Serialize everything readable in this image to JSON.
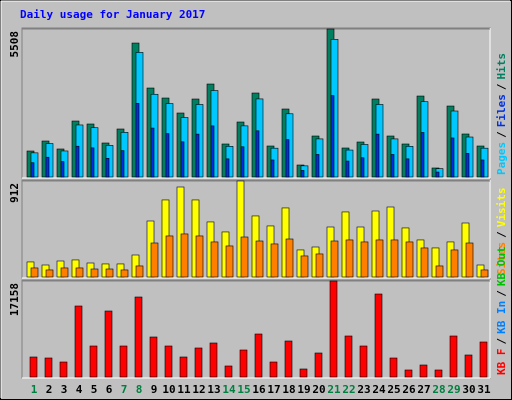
{
  "chart_data": [
    {
      "type": "bar",
      "title": "Daily usage for January 2017",
      "categories": [
        "1",
        "2",
        "3",
        "4",
        "5",
        "6",
        "7",
        "8",
        "9",
        "10",
        "11",
        "12",
        "13",
        "14",
        "15",
        "16",
        "17",
        "18",
        "19",
        "20",
        "21",
        "22",
        "23",
        "24",
        "25",
        "26",
        "27",
        "28",
        "29",
        "30",
        "31"
      ],
      "category_colors": [
        "#008040",
        "#000000",
        "#000000",
        "#000000",
        "#000000",
        "#000000",
        "#008040",
        "#008040",
        "#000000",
        "#000000",
        "#000000",
        "#000000",
        "#000000",
        "#008040",
        "#008040",
        "#000000",
        "#000000",
        "#000000",
        "#000000",
        "#000000",
        "#008040",
        "#008040",
        "#000000",
        "#000000",
        "#000000",
        "#000000",
        "#000000",
        "#008040",
        "#008040",
        "#000000",
        "#000000"
      ],
      "ylim": [
        0,
        5508
      ],
      "yticks": [
        5508
      ],
      "separator": "/",
      "series": [
        {
          "name": "Pages",
          "color": "#00c8ff",
          "values": [
            899,
            1245,
            969,
            1937,
            1834,
            1176,
            1661,
            4636,
            3079,
            2733,
            2214,
            2699,
            3218,
            1142,
            1903,
            2906,
            1072,
            2353,
            415,
            1418,
            5122,
            1003,
            1211,
            2699,
            1418,
            1142,
            2802,
            312,
            2456,
            1488,
            1072
          ]
        },
        {
          "name": "Files",
          "color": "#0030e0",
          "values": [
            532,
            736,
            573,
            1146,
            1085,
            696,
            982,
            2742,
            1821,
            1616,
            1310,
            1596,
            1903,
            675,
            1125,
            1719,
            634,
            1392,
            245,
            839,
            3029,
            593,
            716,
            1596,
            839,
            675,
            1657,
            184,
            1453,
            880,
            634
          ]
        },
        {
          "name": "Hits",
          "color": "#008060",
          "values": [
            967,
            1339,
            1042,
            2083,
            1972,
            1265,
            1786,
            4985,
            3311,
            2939,
            2381,
            2902,
            3460,
            1228,
            2046,
            3125,
            1153,
            2530,
            446,
            1525,
            5508,
            1079,
            1302,
            2902,
            1525,
            1228,
            3013,
            335,
            2641,
            1600,
            1153
          ]
        }
      ]
    },
    {
      "type": "bar",
      "ylim": [
        0,
        912
      ],
      "yticks": [
        912
      ],
      "separator": "/",
      "series": [
        {
          "name": "Sites",
          "color": "#ff8000",
          "values": [
            86,
            67,
            86,
            86,
            76,
            76,
            67,
            105,
            323,
            390,
            409,
            390,
            333,
            295,
            380,
            342,
            314,
            361,
            200,
            219,
            342,
            352,
            333,
            352,
            352,
            333,
            276,
            105,
            257,
            323,
            67
          ]
        },
        {
          "name": "Visits",
          "color": "#ffff00",
          "values": [
            143,
            114,
            152,
            162,
            133,
            124,
            124,
            209,
            532,
            732,
            855,
            732,
            523,
            428,
            912,
            580,
            485,
            656,
            257,
            285,
            475,
            618,
            475,
            627,
            665,
            466,
            352,
            276,
            333,
            513,
            114
          ]
        }
      ]
    },
    {
      "type": "bar",
      "ylim": [
        0,
        17158
      ],
      "yticks": [
        17158
      ],
      "separator": "/",
      "series": [
        {
          "name": "KB F",
          "color": "#ff0000",
          "values": [
            3574,
            3395,
            2680,
            12688,
            5540,
            11794,
            5540,
            14296,
            7148,
            5540,
            3574,
            5182,
            6076,
            1966,
            4825,
            7684,
            2680,
            6433,
            1430,
            4289,
            17158,
            7327,
            5540,
            14832,
            3395,
            1251,
            2144,
            1251,
            7327,
            3931,
            6255
          ]
        },
        {
          "name": "KB In",
          "color": "#0080ff",
          "values": [
            0,
            0,
            0,
            0,
            0,
            0,
            0,
            0,
            0,
            0,
            0,
            0,
            0,
            0,
            0,
            0,
            0,
            0,
            0,
            0,
            0,
            0,
            0,
            0,
            0,
            0,
            0,
            0,
            0,
            0,
            0
          ]
        },
        {
          "name": "KB Out",
          "color": "#00c000",
          "values": [
            0,
            0,
            0,
            0,
            0,
            0,
            0,
            0,
            0,
            0,
            0,
            0,
            0,
            0,
            0,
            0,
            0,
            0,
            0,
            0,
            0,
            0,
            0,
            0,
            0,
            0,
            0,
            0,
            0,
            0,
            0
          ]
        }
      ]
    }
  ]
}
